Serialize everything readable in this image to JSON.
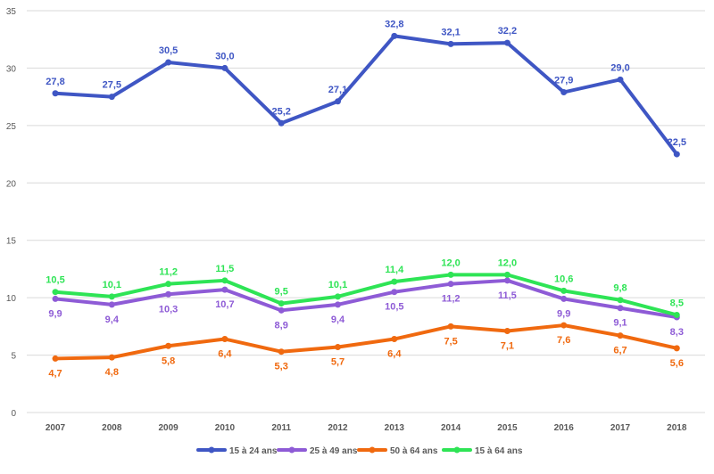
{
  "chart_data": {
    "type": "line",
    "categories": [
      "2007",
      "2008",
      "2009",
      "2010",
      "2011",
      "2012",
      "2013",
      "2014",
      "2015",
      "2016",
      "2017",
      "2018"
    ],
    "series": [
      {
        "name": "15 à 24 ans",
        "color": "#3F56C4",
        "values": [
          27.8,
          27.5,
          30.5,
          30.0,
          25.2,
          27.1,
          32.8,
          32.1,
          32.2,
          27.9,
          29.0,
          22.5
        ],
        "labels": [
          "27,8",
          "27,5",
          "30,5",
          "30,0",
          "25,2",
          "27,1",
          "32,8",
          "32,1",
          "32,2",
          "27,9",
          "29,0",
          "22,5"
        ],
        "label_pos": "above"
      },
      {
        "name": "25 à 49 ans",
        "color": "#8E5BD6",
        "values": [
          9.9,
          9.4,
          10.3,
          10.7,
          8.9,
          9.4,
          10.5,
          11.2,
          11.5,
          9.9,
          9.1,
          8.3
        ],
        "labels": [
          "9,9",
          "9,4",
          "10,3",
          "10,7",
          "8,9",
          "9,4",
          "10,5",
          "11,2",
          "11,5",
          "9,9",
          "9,1",
          "8,3"
        ],
        "label_pos": "below"
      },
      {
        "name": "50 à 64 ans",
        "color": "#F0690F",
        "values": [
          4.7,
          4.8,
          5.8,
          6.4,
          5.3,
          5.7,
          6.4,
          7.5,
          7.1,
          7.6,
          6.7,
          5.6
        ],
        "labels": [
          "4,7",
          "4,8",
          "5,8",
          "6,4",
          "5,3",
          "5,7",
          "6,4",
          "7,5",
          "7,1",
          "7,6",
          "6,7",
          "5,6"
        ],
        "label_pos": "below"
      },
      {
        "name": "15 à 64 ans",
        "color": "#2EE455",
        "values": [
          10.5,
          10.1,
          11.2,
          11.5,
          9.5,
          10.1,
          11.4,
          12.0,
          12.0,
          10.6,
          9.8,
          8.5
        ],
        "labels": [
          "10,5",
          "10,1",
          "11,2",
          "11,5",
          "9,5",
          "10,1",
          "11,4",
          "12,0",
          "12,0",
          "10,6",
          "9,8",
          "8,5"
        ],
        "label_pos": "above"
      }
    ],
    "y_ticks": [
      "0",
      "5",
      "10",
      "15",
      "20",
      "25",
      "30",
      "35"
    ],
    "ylim": [
      0,
      35
    ],
    "grid": true,
    "legend": "bottom"
  }
}
